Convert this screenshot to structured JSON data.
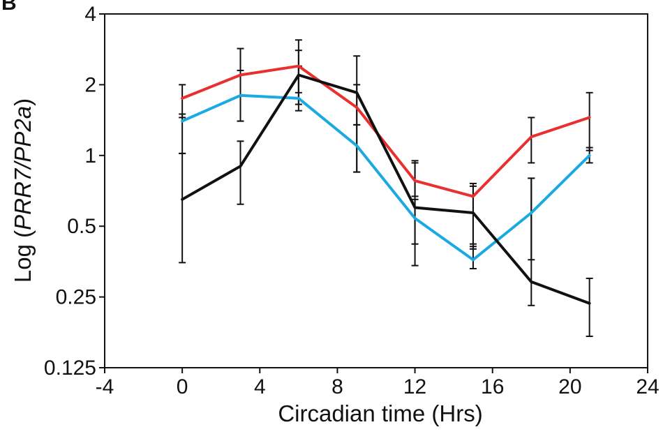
{
  "panel_label": "B",
  "chart_data": {
    "type": "line",
    "xlabel": "Circadian time (Hrs)",
    "ylabel_prefix": "Log (",
    "ylabel_italic": "PRR7/PP2a",
    "ylabel_suffix": ")",
    "xlim": [
      -4,
      24
    ],
    "xticks": [
      -4,
      0,
      4,
      8,
      12,
      16,
      20,
      24
    ],
    "ylim": [
      0.125,
      4
    ],
    "yscale": "log2",
    "yticks": [
      0.125,
      0.25,
      0.5,
      1,
      2,
      4
    ],
    "ytick_labels": [
      "0.125",
      "0.25",
      "0.5",
      "1",
      "2",
      "4"
    ],
    "grid": false,
    "x": [
      0,
      3,
      6,
      9,
      12,
      15,
      18,
      21
    ],
    "series": [
      {
        "color": "#e8312f",
        "values": [
          1.75,
          2.2,
          2.4,
          1.6,
          0.78,
          0.67,
          1.2,
          1.45
        ],
        "err_low": [
          1.45,
          1.4,
          1.85,
          1.35,
          0.67,
          0.42,
          0.93,
          1.05
        ],
        "err_high": [
          2.0,
          2.85,
          2.8,
          2.0,
          0.93,
          0.76,
          1.45,
          1.85
        ]
      },
      {
        "color": "#1aa9e1",
        "values": [
          1.4,
          1.8,
          1.75,
          1.1,
          0.54,
          0.36,
          0.57,
          1.0
        ],
        "err_low": [
          1.02,
          1.4,
          1.55,
          0.85,
          0.42,
          0.33,
          0.36,
          0.93
        ],
        "err_high": [
          1.5,
          2.3,
          2.4,
          1.35,
          0.65,
          0.41,
          0.8,
          1.08
        ]
      },
      {
        "color": "#111111",
        "values": [
          0.65,
          0.9,
          2.2,
          1.85,
          0.6,
          0.57,
          0.29,
          0.235
        ],
        "err_low": [
          0.35,
          0.62,
          1.65,
          0.85,
          0.34,
          0.4,
          0.23,
          0.17
        ],
        "err_high": [
          1.02,
          1.15,
          3.1,
          2.65,
          0.95,
          0.74,
          0.8,
          0.3
        ]
      }
    ]
  }
}
